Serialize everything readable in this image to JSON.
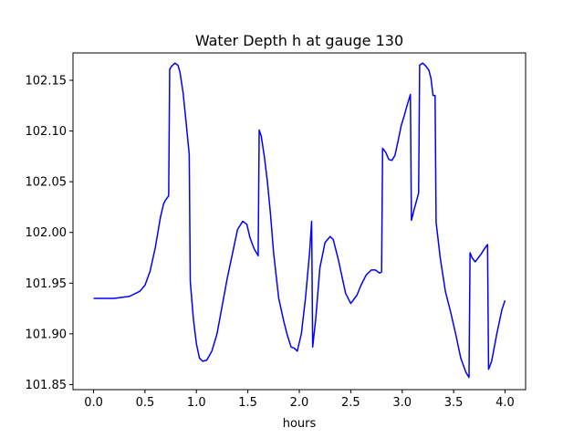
{
  "chart_data": {
    "type": "line",
    "title": "Water Depth h at gauge 130",
    "xlabel": "hours",
    "ylabel": "",
    "xlim": [
      -0.2,
      4.2
    ],
    "ylim": [
      101.845,
      102.177
    ],
    "xticks": [
      0.0,
      0.5,
      1.0,
      1.5,
      2.0,
      2.5,
      3.0,
      3.5,
      4.0
    ],
    "xtick_labels": [
      "0.0",
      "0.5",
      "1.0",
      "1.5",
      "2.0",
      "2.5",
      "3.0",
      "3.5",
      "4.0"
    ],
    "yticks": [
      101.85,
      101.9,
      101.95,
      102.0,
      102.05,
      102.1,
      102.15
    ],
    "ytick_labels": [
      "101.85",
      "101.90",
      "101.95",
      "102.00",
      "102.05",
      "102.10",
      "102.15"
    ],
    "grid": false,
    "series": [
      {
        "color": "#0000ff",
        "x": [
          0.0,
          0.2,
          0.35,
          0.45,
          0.5,
          0.55,
          0.6,
          0.65,
          0.68,
          0.7,
          0.73,
          0.74,
          0.76,
          0.79,
          0.82,
          0.84,
          0.87,
          0.9,
          0.93,
          0.94,
          0.97,
          1.0,
          1.03,
          1.06,
          1.1,
          1.15,
          1.2,
          1.3,
          1.4,
          1.45,
          1.49,
          1.52,
          1.56,
          1.6,
          1.61,
          1.63,
          1.66,
          1.69,
          1.72,
          1.75,
          1.8,
          1.85,
          1.88,
          1.92,
          1.95,
          1.98,
          2.02,
          2.06,
          2.1,
          2.12,
          2.13,
          2.16,
          2.2,
          2.25,
          2.3,
          2.33,
          2.38,
          2.45,
          2.5,
          2.56,
          2.6,
          2.65,
          2.7,
          2.74,
          2.78,
          2.8,
          2.81,
          2.84,
          2.87,
          2.9,
          2.93,
          2.96,
          2.99,
          3.02,
          3.05,
          3.08,
          3.09,
          3.12,
          3.15,
          3.16,
          3.17,
          3.2,
          3.23,
          3.26,
          3.28,
          3.3,
          3.32,
          3.33,
          3.37,
          3.42,
          3.47,
          3.52,
          3.57,
          3.62,
          3.65,
          3.66,
          3.68,
          3.71,
          3.74,
          3.77,
          3.8,
          3.83,
          3.84,
          3.87,
          3.92,
          3.97,
          4.0
        ],
        "y": [
          101.935,
          101.935,
          101.937,
          101.942,
          101.948,
          101.962,
          101.985,
          102.015,
          102.028,
          102.032,
          102.036,
          102.161,
          102.164,
          102.167,
          102.165,
          102.158,
          102.138,
          102.108,
          102.077,
          101.952,
          101.915,
          101.89,
          101.876,
          101.873,
          101.874,
          101.883,
          101.9,
          101.955,
          102.003,
          102.011,
          102.008,
          101.995,
          101.984,
          101.977,
          102.101,
          102.095,
          102.075,
          102.05,
          102.018,
          101.98,
          101.935,
          101.912,
          101.9,
          101.887,
          101.886,
          101.883,
          101.9,
          101.935,
          101.98,
          102.011,
          101.887,
          101.915,
          101.965,
          101.99,
          101.996,
          101.993,
          101.973,
          101.94,
          101.93,
          101.938,
          101.948,
          101.958,
          101.963,
          101.963,
          101.96,
          101.961,
          102.083,
          102.079,
          102.072,
          102.071,
          102.076,
          102.09,
          102.105,
          102.115,
          102.126,
          102.136,
          102.012,
          102.024,
          102.035,
          102.039,
          102.165,
          102.167,
          102.164,
          102.16,
          102.152,
          102.135,
          102.135,
          102.01,
          101.975,
          101.942,
          101.922,
          101.9,
          101.876,
          101.862,
          101.857,
          101.98,
          101.975,
          101.971,
          101.975,
          101.979,
          101.984,
          101.988,
          101.865,
          101.873,
          101.9,
          101.924,
          101.933
        ]
      }
    ]
  }
}
